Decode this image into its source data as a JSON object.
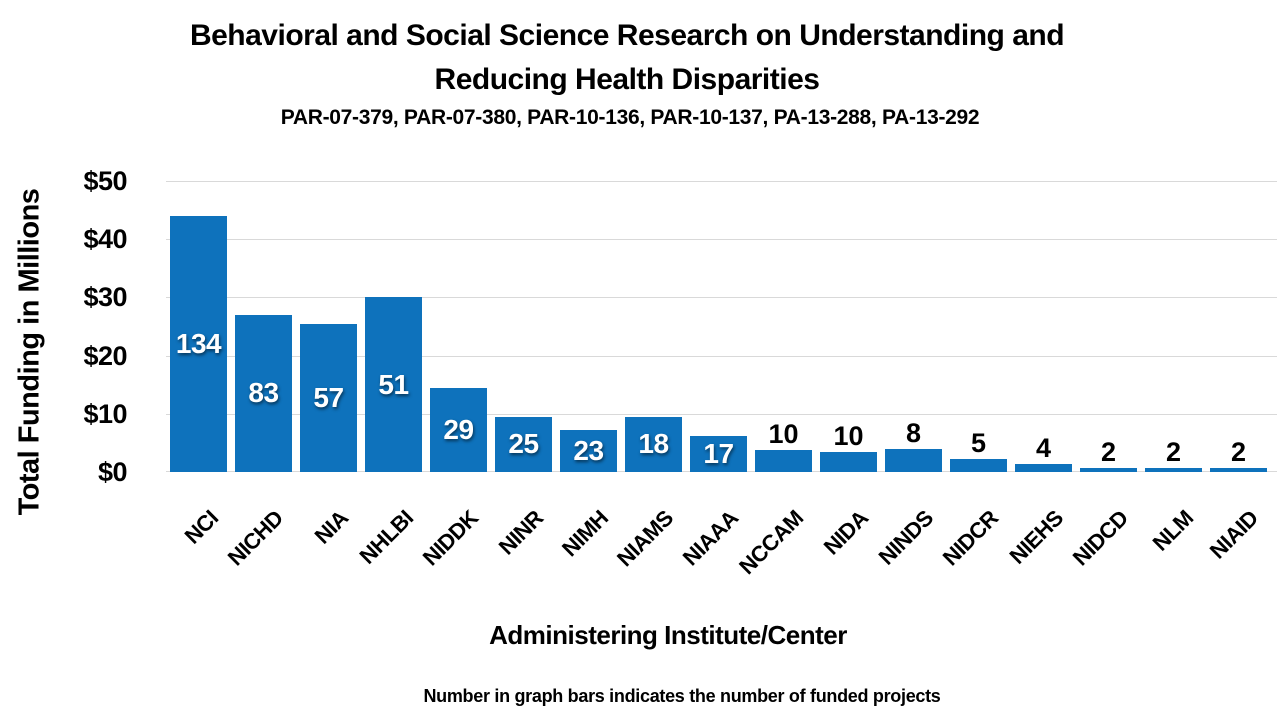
{
  "header": {
    "title_line1": "Behavioral and Social Science Research on Understanding and",
    "title_line2": "Reducing Health Disparities",
    "subtitle": "PAR-07-379, PAR-07-380, PAR-10-136, PAR-10-137, PA-13-288, PA-13-292"
  },
  "footnote": "Number in graph bars indicates the number of funded projects",
  "colors": {
    "bar": "#0E72BC",
    "gridline": "#D9D9D9",
    "in_bar_label": "#FFFFFF",
    "above_bar_label": "#000000",
    "text": "#000000",
    "background": "#FFFFFF"
  },
  "chart_data": {
    "type": "bar",
    "title": "Behavioral and Social Science Research on Understanding and Reducing Health Disparities",
    "subtitle": "PAR-07-379, PAR-07-380, PAR-10-136, PAR-10-137, PA-13-288, PA-13-292",
    "xlabel": "Administering Institute/Center",
    "ylabel": "Total Funding in Millions",
    "ylim": [
      0,
      50
    ],
    "yticks": [
      0,
      10,
      20,
      30,
      40,
      50
    ],
    "ytick_labels": [
      "$0",
      "$10",
      "$20",
      "$30",
      "$40",
      "$50"
    ],
    "grid": "horizontal",
    "legend": "none",
    "annotation": "Number in graph bars indicates the number of funded projects",
    "categories": [
      "NCI",
      "NICHD",
      "NIA",
      "NHLBI",
      "NIDDK",
      "NINR",
      "NIMH",
      "NIAMS",
      "NIAAA",
      "NCCAM",
      "NIDA",
      "NINDS",
      "NIDCR",
      "NIEHS",
      "NIDCD",
      "NLM",
      "NIAID"
    ],
    "series": [
      {
        "name": "Total Funding in Millions (estimated from bar heights)",
        "values": [
          44,
          27,
          25.5,
          30,
          14.5,
          9.5,
          7.3,
          9.5,
          6.2,
          3.8,
          3.4,
          4,
          2.2,
          1.4,
          0.7,
          0.7,
          0.7
        ]
      },
      {
        "name": "Number of funded projects (bar labels)",
        "values": [
          134,
          83,
          57,
          51,
          29,
          25,
          23,
          18,
          17,
          10,
          10,
          8,
          5,
          4,
          2,
          2,
          2
        ]
      }
    ]
  }
}
